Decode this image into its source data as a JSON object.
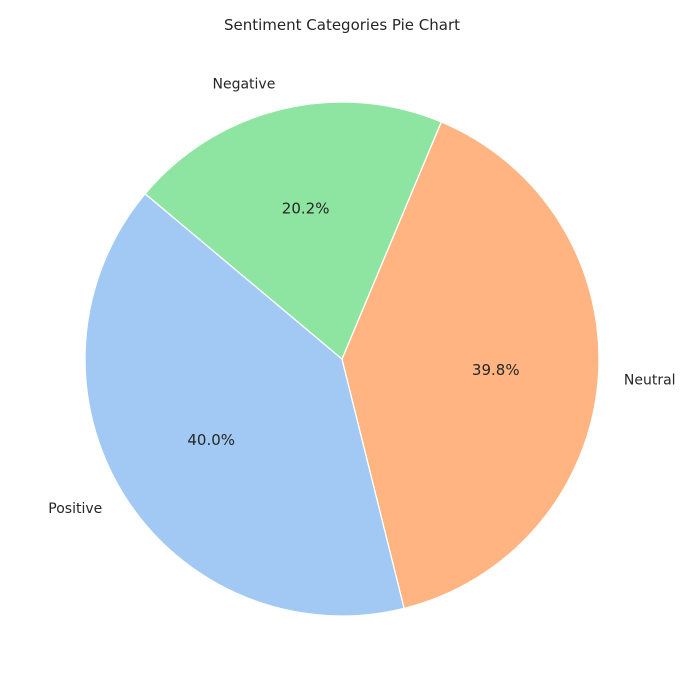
{
  "chart_data": {
    "type": "pie",
    "title": "Sentiment Categories Pie Chart",
    "categories": [
      "Positive",
      "Neutral",
      "Negative"
    ],
    "values": [
      40.0,
      39.8,
      20.2
    ],
    "value_labels": [
      "40.0%",
      "39.8%",
      "20.2%"
    ],
    "colors": [
      "#a1c9f4",
      "#ffb482",
      "#8de5a1"
    ],
    "start_angle_deg": 140,
    "direction": "counterclockwise",
    "legend": "none"
  }
}
